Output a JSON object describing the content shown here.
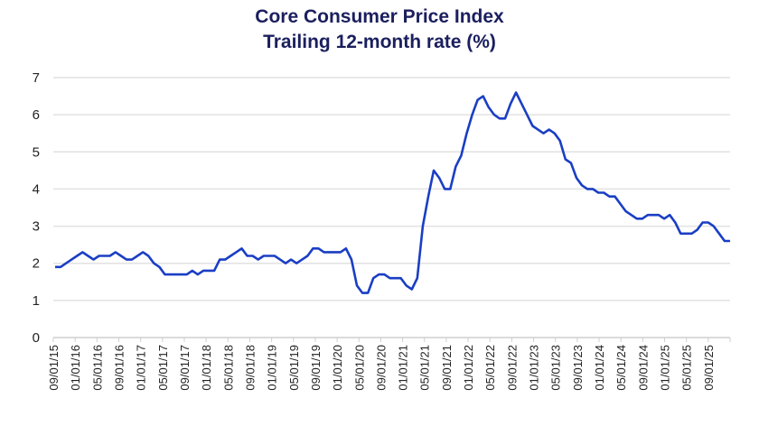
{
  "chart_data": {
    "type": "line",
    "title": "Core Consumer Price Index",
    "subtitle": "Trailing 12-month rate (%)",
    "xlabel": "",
    "ylabel": "",
    "ylim": [
      0,
      7
    ],
    "yticks": [
      0,
      1,
      2,
      3,
      4,
      5,
      6,
      7
    ],
    "grid": "horizontal",
    "line_color": "#1a3ec4",
    "x_start": "09/01/15",
    "x_end": "12/01/25",
    "tick_labels": [
      "09/01/15",
      "01/01/16",
      "05/01/16",
      "09/01/16",
      "01/01/17",
      "05/01/17",
      "09/01/17",
      "01/01/18",
      "05/01/18",
      "09/01/18",
      "01/01/19",
      "05/01/19",
      "09/01/19",
      "01/01/20",
      "05/01/20",
      "09/01/20",
      "01/01/21",
      "05/01/21",
      "09/01/21",
      "01/01/22",
      "05/01/22",
      "09/01/22",
      "01/01/23",
      "05/01/23",
      "09/01/23",
      "01/01/24",
      "05/01/24",
      "09/01/24",
      "01/01/25",
      "05/01/25",
      "09/01/25"
    ],
    "series": [
      {
        "values": [
          1.9,
          1.9,
          2.0,
          2.1,
          2.2,
          2.3,
          2.2,
          2.1,
          2.2,
          2.2,
          2.2,
          2.3,
          2.2,
          2.1,
          2.1,
          2.2,
          2.3,
          2.2,
          2.0,
          1.9,
          1.7,
          1.7,
          1.7,
          1.7,
          1.7,
          1.8,
          1.7,
          1.8,
          1.8,
          1.8,
          2.1,
          2.1,
          2.2,
          2.3,
          2.4,
          2.2,
          2.2,
          2.1,
          2.2,
          2.2,
          2.2,
          2.1,
          2.0,
          2.1,
          2.0,
          2.1,
          2.2,
          2.4,
          2.4,
          2.3,
          2.3,
          2.3,
          2.3,
          2.4,
          2.1,
          1.4,
          1.2,
          1.2,
          1.6,
          1.7,
          1.7,
          1.6,
          1.6,
          1.6,
          1.4,
          1.3,
          1.6,
          3.0,
          3.8,
          4.5,
          4.3,
          4.0,
          4.0,
          4.6,
          4.9,
          5.5,
          6.0,
          6.4,
          6.5,
          6.2,
          6.0,
          5.9,
          5.9,
          6.3,
          6.6,
          6.3,
          6.0,
          5.7,
          5.6,
          5.5,
          5.6,
          5.5,
          5.3,
          4.8,
          4.7,
          4.3,
          4.1,
          4.0,
          4.0,
          3.9,
          3.9,
          3.8,
          3.8,
          3.6,
          3.4,
          3.3,
          3.2,
          3.2,
          3.3,
          3.3,
          3.3,
          3.2,
          3.3,
          3.1,
          2.8,
          2.8,
          2.8,
          2.9,
          3.1,
          3.1,
          3.0,
          2.8,
          2.6,
          2.6
        ]
      }
    ]
  }
}
